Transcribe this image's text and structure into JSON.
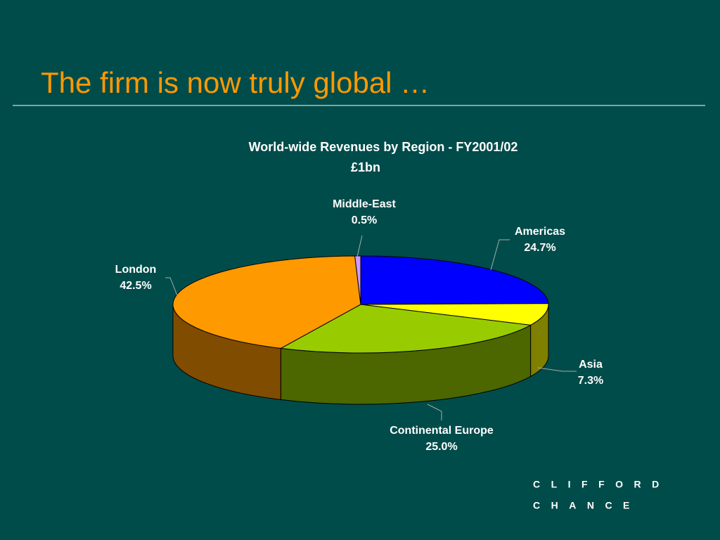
{
  "slide_title": "The firm is now truly global …",
  "chart_data": {
    "type": "pie3d",
    "title": "World-wide Revenues by Region - FY2001/02",
    "subtitle": "£1bn",
    "categories": [
      "Americas",
      "Asia",
      "Continental Europe",
      "London",
      "Middle-East"
    ],
    "values": [
      24.7,
      7.3,
      25.0,
      42.5,
      0.5
    ],
    "value_labels": [
      "24.7%",
      "7.3%",
      "25.0%",
      "42.5%",
      "0.5%"
    ],
    "colors": [
      "#0000ff",
      "#ffff00",
      "#99cc00",
      "#ff9900",
      "#cc99ff"
    ]
  },
  "logo": [
    "CLIFFORD",
    "CHANCE"
  ]
}
